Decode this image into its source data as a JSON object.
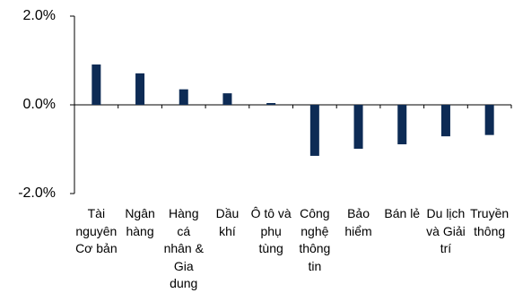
{
  "chart_data": {
    "type": "bar",
    "categories": [
      "Tài nguyên Cơ bản",
      "Ngân hàng",
      "Hàng cá nhân & Gia dung",
      "Dầu khí",
      "Ô tô và phụ tùng",
      "Công nghệ thông tin",
      "Bảo hiểm",
      "Bán lẻ",
      "Du lịch và Giải trí",
      "Truyền thông"
    ],
    "category_lines": [
      [
        "Tài",
        "nguyên",
        "Cơ bản"
      ],
      [
        "Ngân",
        "hàng"
      ],
      [
        "Hàng",
        "cá",
        "nhân &",
        "Gia",
        "dung"
      ],
      [
        "Dầu",
        "khí"
      ],
      [
        "Ô tô và",
        "phụ",
        "tùng"
      ],
      [
        "Công",
        "nghệ",
        "thông",
        "tin"
      ],
      [
        "Bảo",
        "hiểm"
      ],
      [
        "Bán lẻ"
      ],
      [
        "Du lịch",
        "và Giải",
        "trí"
      ],
      [
        "Truyền",
        "thông"
      ]
    ],
    "values": [
      0.91,
      0.71,
      0.35,
      0.26,
      0.04,
      -1.15,
      -0.99,
      -0.89,
      -0.71,
      -0.68
    ],
    "ylim": [
      -2.0,
      2.0
    ],
    "yticks": [
      "2.0%",
      "0.0%",
      "-2.0%"
    ],
    "ytick_values": [
      2.0,
      0.0,
      -2.0
    ],
    "bar_color": "#0d2b55",
    "grid": false
  }
}
